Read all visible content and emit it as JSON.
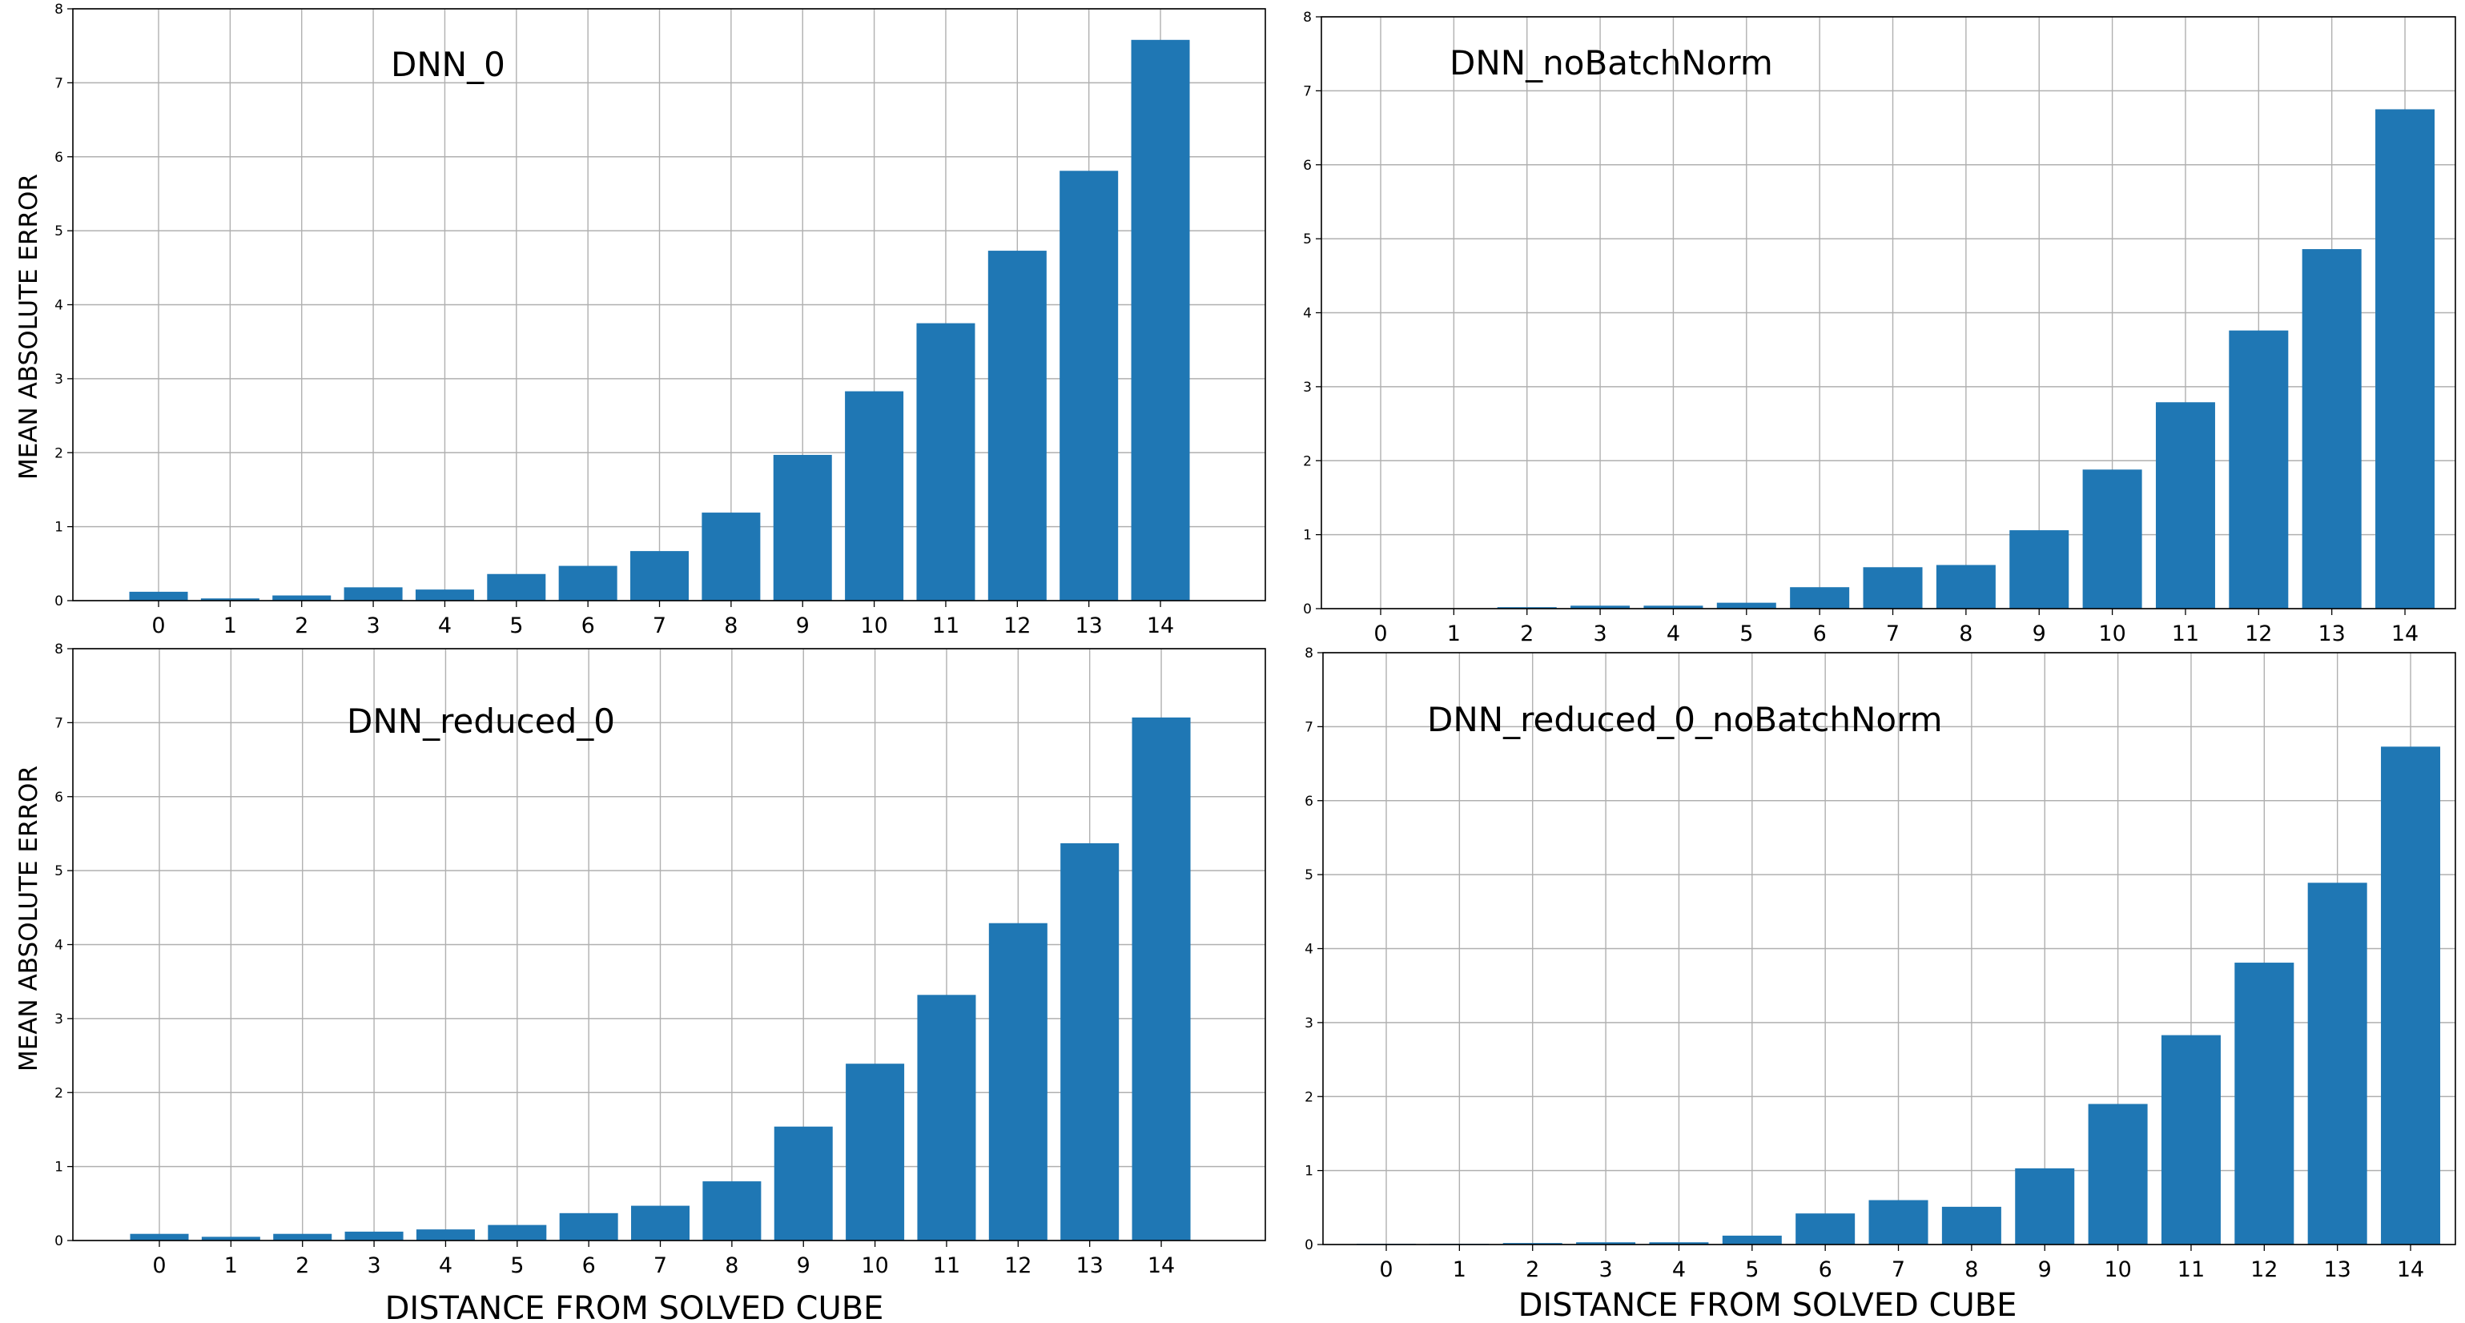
{
  "figure": {
    "ylabel": "MEAN ABSOLUTE ERROR",
    "xlabel": "DISTANCE FROM SOLVED CUBE"
  },
  "chart_data": [
    {
      "type": "bar",
      "title": "DNN_0",
      "categories": [
        "0",
        "1",
        "2",
        "3",
        "4",
        "5",
        "6",
        "7",
        "8",
        "9",
        "10",
        "11",
        "12",
        "13",
        "14"
      ],
      "values": [
        0.12,
        0.03,
        0.07,
        0.18,
        0.15,
        0.36,
        0.47,
        0.67,
        1.19,
        1.97,
        2.83,
        3.75,
        4.73,
        5.81,
        7.58
      ],
      "ylim": [
        0,
        8
      ],
      "yticks": [
        "0",
        "1",
        "2",
        "3",
        "4",
        "5",
        "6",
        "7",
        "8"
      ],
      "grid": true,
      "color": "#1f77b4"
    },
    {
      "type": "bar",
      "title": "DNN_noBatchNorm",
      "categories": [
        "0",
        "1",
        "2",
        "3",
        "4",
        "5",
        "6",
        "7",
        "8",
        "9",
        "10",
        "11",
        "12",
        "13",
        "14"
      ],
      "values": [
        0.0,
        0.0,
        0.02,
        0.04,
        0.04,
        0.08,
        0.29,
        0.56,
        0.59,
        1.06,
        1.88,
        2.79,
        3.76,
        4.86,
        6.75
      ],
      "ylim": [
        0,
        8
      ],
      "yticks": [
        "0",
        "1",
        "2",
        "3",
        "4",
        "5",
        "6",
        "7",
        "8"
      ],
      "grid": true,
      "color": "#1f77b4"
    },
    {
      "type": "bar",
      "title": "DNN_reduced_0",
      "categories": [
        "0",
        "1",
        "2",
        "3",
        "4",
        "5",
        "6",
        "7",
        "8",
        "9",
        "10",
        "11",
        "12",
        "13",
        "14"
      ],
      "values": [
        0.09,
        0.05,
        0.09,
        0.12,
        0.15,
        0.21,
        0.37,
        0.47,
        0.8,
        1.54,
        2.39,
        3.32,
        4.29,
        5.37,
        7.07
      ],
      "ylim": [
        0,
        8
      ],
      "yticks": [
        "0",
        "1",
        "2",
        "3",
        "4",
        "5",
        "6",
        "7",
        "8"
      ],
      "grid": true,
      "color": "#1f77b4"
    },
    {
      "type": "bar",
      "title": "DNN_reduced_0_noBatchNorm",
      "categories": [
        "0",
        "1",
        "2",
        "3",
        "4",
        "5",
        "6",
        "7",
        "8",
        "9",
        "10",
        "11",
        "12",
        "13",
        "14"
      ],
      "values": [
        0.01,
        0.01,
        0.02,
        0.03,
        0.03,
        0.12,
        0.42,
        0.6,
        0.51,
        1.03,
        1.9,
        2.83,
        3.81,
        4.89,
        6.73
      ],
      "ylim": [
        0,
        8
      ],
      "yticks": [
        "0",
        "1",
        "2",
        "3",
        "4",
        "5",
        "6",
        "7",
        "8"
      ],
      "grid": true,
      "color": "#1f77b4"
    }
  ]
}
